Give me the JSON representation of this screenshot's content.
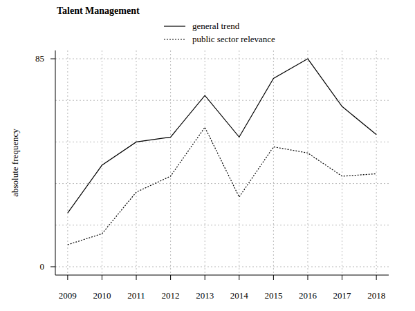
{
  "chart_data": {
    "type": "line",
    "title": "Talent Management",
    "y_label": "absolute frequency",
    "x": [
      2009,
      2010,
      2011,
      2012,
      2013,
      2014,
      2015,
      2016,
      2017,
      2018
    ],
    "xlim": [
      2008.64,
      2018.36
    ],
    "xticks": [
      2009,
      2010,
      2011,
      2012,
      2013,
      2014,
      2015,
      2016,
      2017,
      2018
    ],
    "ylim": [
      -3.4,
      88.4
    ],
    "yticks": [
      0,
      {
        "value": 17,
        "label": null
      },
      {
        "value": 34,
        "label": null
      },
      {
        "value": 51,
        "label": null
      },
      {
        "value": 68,
        "label": null
      },
      85
    ],
    "grid": true,
    "legend": "top",
    "series": [
      {
        "name": "general trend",
        "color": "#000000",
        "line_style": "solid",
        "values": [
          22,
          41.5,
          51,
          53,
          70,
          53,
          77,
          85,
          65.5,
          54
        ]
      },
      {
        "name": "public sector relevance",
        "color": "#000000",
        "line_style": "dotted",
        "values": [
          9,
          13.5,
          30.5,
          37,
          57,
          28.5,
          49,
          46.5,
          37,
          38
        ]
      }
    ]
  }
}
